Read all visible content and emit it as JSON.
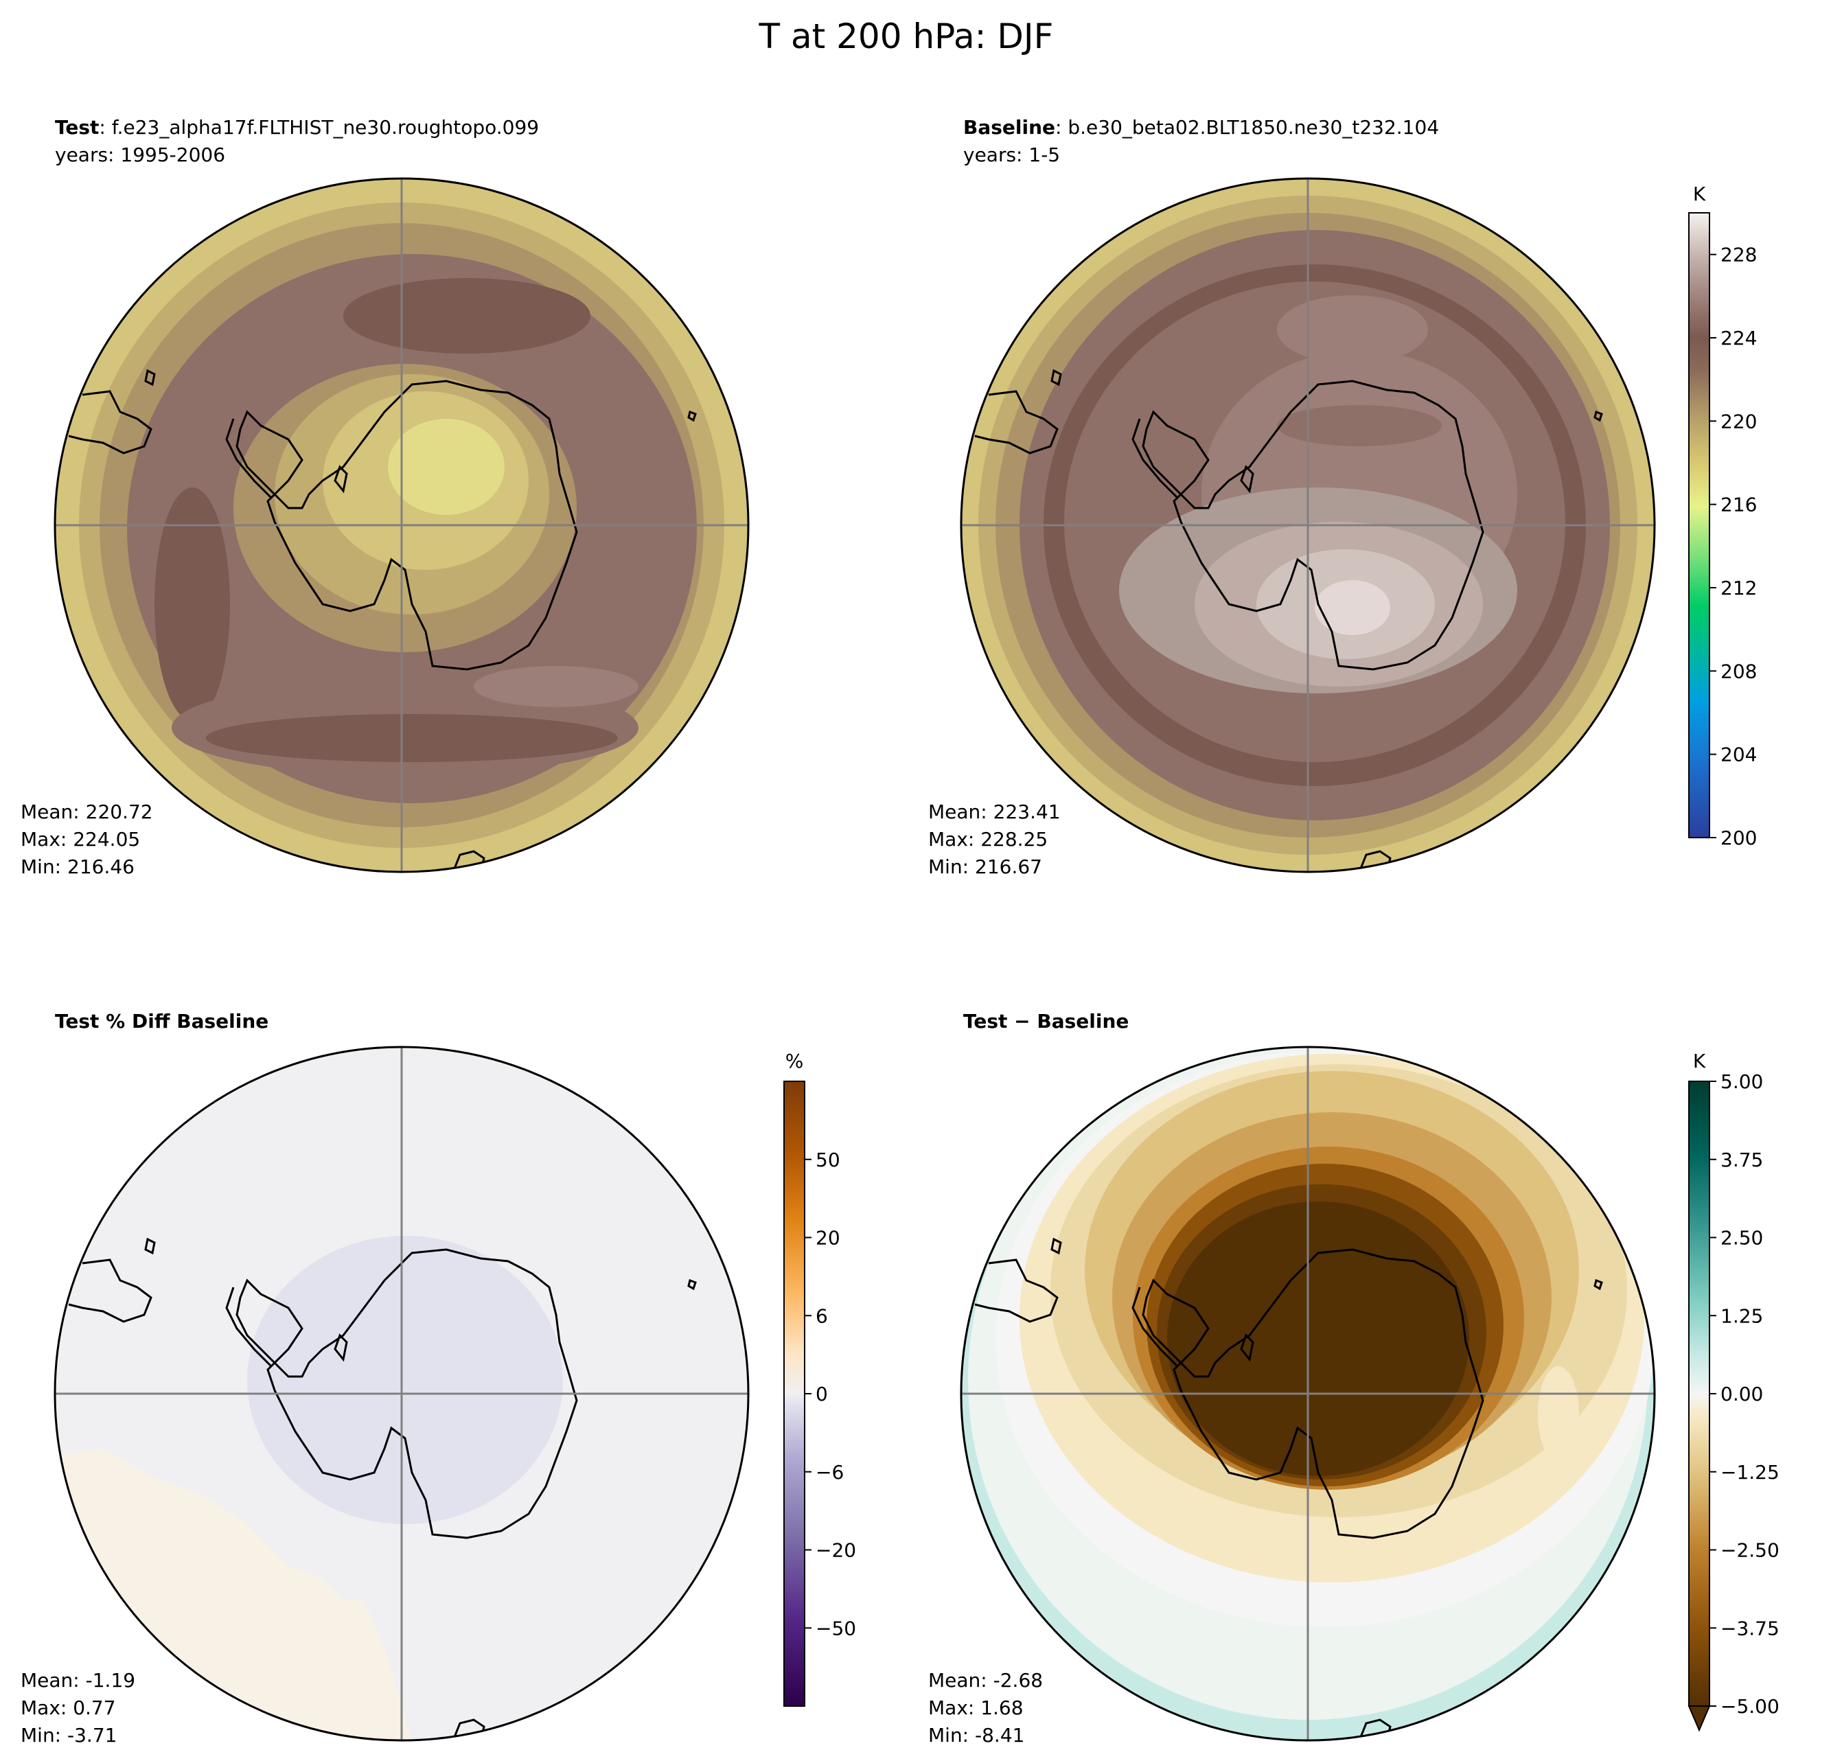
{
  "figure_title": "T at 200 hPa: DJF",
  "panels": {
    "test": {
      "label_bold": "Test",
      "label_rest": ": f.e23_alpha17f.FLTHIST_ne30.roughtopo.099",
      "years": "years: 1995-2006",
      "stats": {
        "mean": "Mean: 220.72",
        "max": "Max: 224.05",
        "min": "Min: 216.46"
      }
    },
    "baseline": {
      "label_bold": "Baseline",
      "label_rest": ": b.e30_beta02.BLT1850.ne30_t232.104",
      "years": "years: 1-5",
      "stats": {
        "mean": "Mean: 223.41",
        "max": "Max: 228.25",
        "min": "Min: 216.67"
      }
    },
    "pctdiff": {
      "label_bold": "Test % Diff Baseline",
      "stats": {
        "mean": "Mean: -1.19",
        "max": "Max:  0.77",
        "min": "Min: -3.71"
      }
    },
    "diff": {
      "label_bold": "Test − Baseline",
      "stats": {
        "mean": "Mean: -2.68",
        "max": "Max:  1.68",
        "min": "Min: -8.41"
      }
    }
  },
  "colorbars": {
    "temperature": {
      "unit": "K",
      "range": [
        200,
        230
      ],
      "ticks": [
        "200",
        "204",
        "208",
        "212",
        "216",
        "220",
        "224",
        "228"
      ],
      "tick_values": [
        200,
        204,
        208,
        212,
        216,
        220,
        224,
        228
      ]
    },
    "percent": {
      "unit": "%",
      "ticks": [
        "−50",
        "−20",
        "−6",
        "0",
        "6",
        "20",
        "50"
      ]
    },
    "difference": {
      "unit": "K",
      "range": [
        -5,
        5
      ],
      "ticks": [
        "−5.00",
        "−3.75",
        "−2.50",
        "−1.25",
        "0.00",
        "1.25",
        "2.50",
        "3.75",
        "5.00"
      ],
      "tick_values": [
        -5,
        -3.75,
        -2.5,
        -1.25,
        0,
        1.25,
        2.5,
        3.75,
        5
      ]
    }
  },
  "chart_data": [
    {
      "type": "heatmap",
      "projection": "south-polar-stereographic",
      "field": "test",
      "mean": 220.72,
      "max": 224.05,
      "min": 216.46,
      "colorbar_range": [
        200,
        230
      ]
    },
    {
      "type": "heatmap",
      "projection": "south-polar-stereographic",
      "field": "baseline",
      "mean": 223.41,
      "max": 228.25,
      "min": 216.67,
      "colorbar_range": [
        200,
        230
      ]
    },
    {
      "type": "heatmap",
      "projection": "south-polar-stereographic",
      "field": "percent difference",
      "mean": -1.19,
      "max": 0.77,
      "min": -3.71,
      "colorbar_ticks": [
        -50,
        -20,
        -6,
        0,
        6,
        20,
        50
      ]
    },
    {
      "type": "heatmap",
      "projection": "south-polar-stereographic",
      "field": "difference",
      "mean": -2.68,
      "max": 1.68,
      "min": -8.41,
      "colorbar_range": [
        -5,
        5
      ]
    }
  ]
}
